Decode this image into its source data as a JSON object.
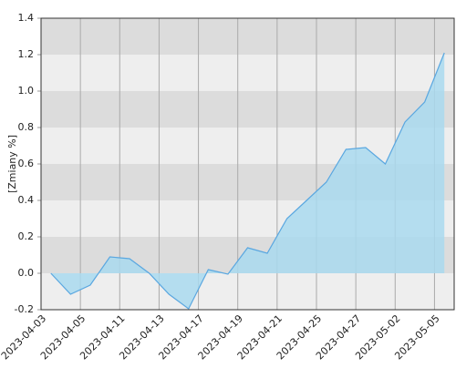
{
  "chart_data": {
    "type": "area",
    "y_label": "[Zmiany %]",
    "x_tick_labels": [
      "2023-04-03",
      "2023-04-05",
      "2023-04-11",
      "2023-04-13",
      "2023-04-17",
      "2023-04-19",
      "2023-04-21",
      "2023-04-25",
      "2023-04-27",
      "2023-05-02",
      "2023-05-05"
    ],
    "values": [
      0,
      -0.115,
      -0.065,
      0.09,
      0.08,
      0.0,
      -0.115,
      -0.195,
      0.02,
      -0.005,
      0.14,
      0.11,
      0.3,
      0.4,
      0.5,
      0.68,
      0.69,
      0.6,
      0.83,
      0.94,
      1.21
    ],
    "color": "#5aa7e0",
    "fill": "#a9d9ee",
    "ylim": [
      -0.2,
      1.4
    ],
    "yticks": [
      -0.2,
      {
        "value": 0,
        "label": "0.0"
      },
      0.2,
      0.4,
      0.6,
      0.8,
      {
        "value": 1,
        "label": "1.0"
      },
      1.2,
      1.4
    ],
    "band_colors": [
      "#eeeeee",
      "#dcdcdc"
    ]
  }
}
